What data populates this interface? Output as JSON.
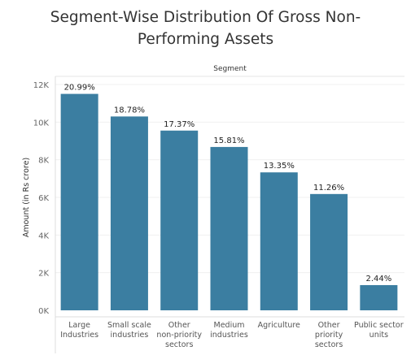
{
  "title_line1": "Segment-Wise Distribution Of Gross Non-",
  "title_line2": "Performing Assets",
  "chart_data": {
    "type": "bar",
    "title": "Segment-Wise Distribution Of Gross Non-Performing Assets",
    "column_header": "Segment",
    "ylabel": "Amount (in Rs crore)",
    "ylim": [
      0,
      12000
    ],
    "yticks": [
      0,
      2000,
      4000,
      6000,
      8000,
      10000,
      12000
    ],
    "ytick_labels": [
      "0K",
      "2K",
      "4K",
      "6K",
      "8K",
      "10K",
      "12K"
    ],
    "categories": [
      [
        "Large",
        "Industries"
      ],
      [
        "Small scale",
        "industries"
      ],
      [
        "Other",
        "non-priority",
        "sectors"
      ],
      [
        "Medium",
        "industries"
      ],
      [
        "Agriculture"
      ],
      [
        "Other",
        "priority",
        "sectors"
      ],
      [
        "Public sector",
        "units"
      ]
    ],
    "values": [
      11500,
      10300,
      9550,
      8680,
      7330,
      6180,
      1340
    ],
    "labels": [
      "20.99%",
      "18.78%",
      "17.37%",
      "15.81%",
      "13.35%",
      "11.26%",
      "2.44%"
    ],
    "bar_color": "#3b7ea1",
    "grid": true
  }
}
